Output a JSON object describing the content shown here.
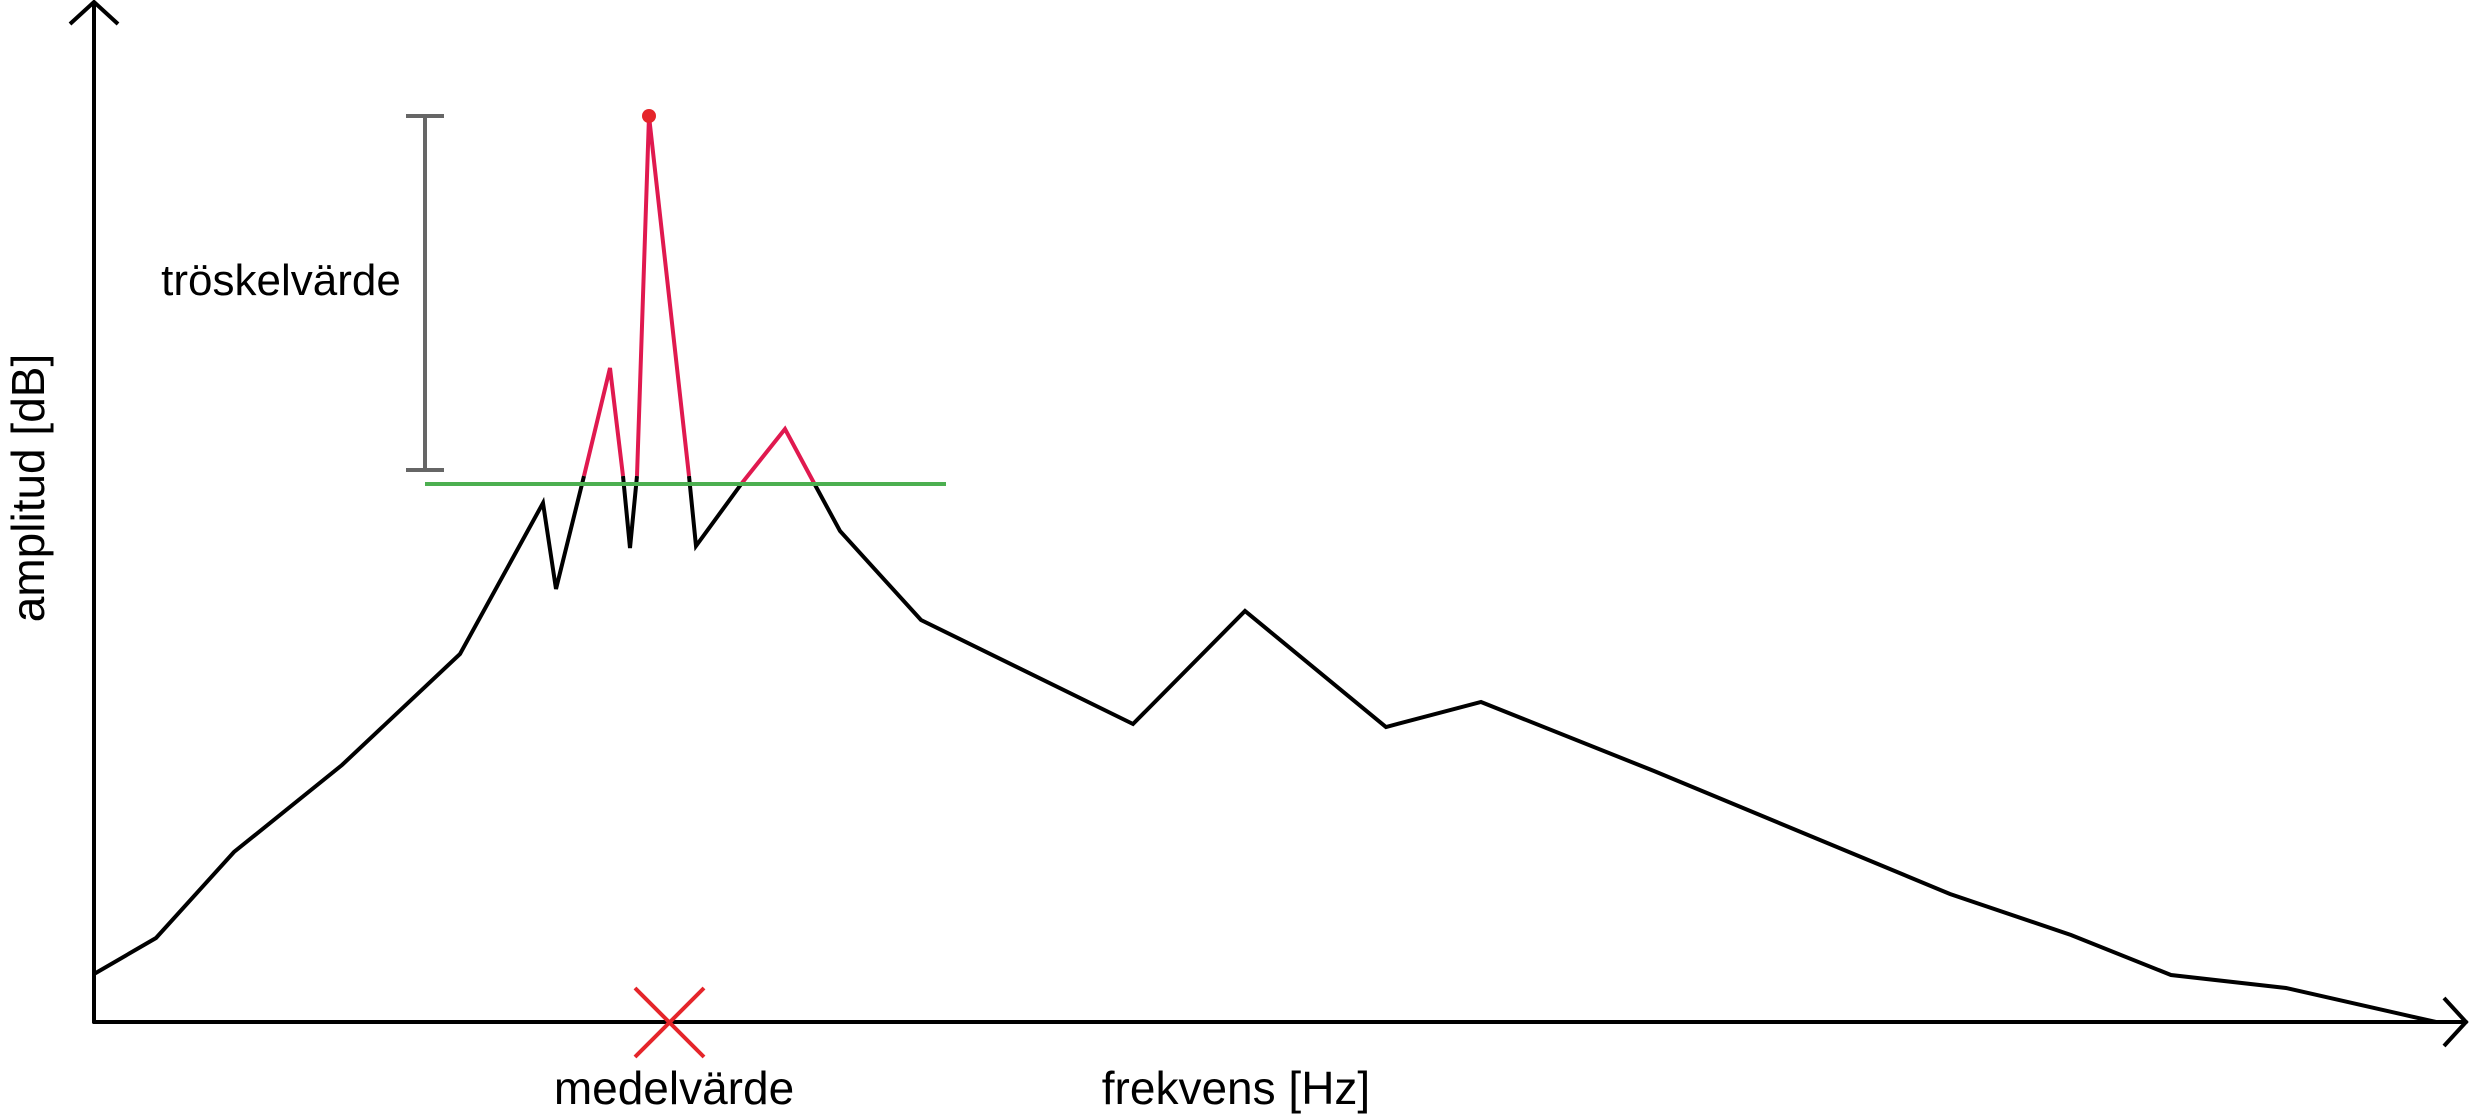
{
  "labels": {
    "x_axis": "frekvens [Hz]",
    "y_axis": "amplitud [dB]",
    "threshold": "tröskelvärde",
    "mean": "medelvärde"
  },
  "colors": {
    "axis": "#000000",
    "spectrum": "#000000",
    "above_threshold": "#e0194f",
    "threshold_line": "#4caf50",
    "threshold_bracket": "#666666",
    "mean_marker": "#e5252a",
    "peak_point": "#e5252a"
  }
}
